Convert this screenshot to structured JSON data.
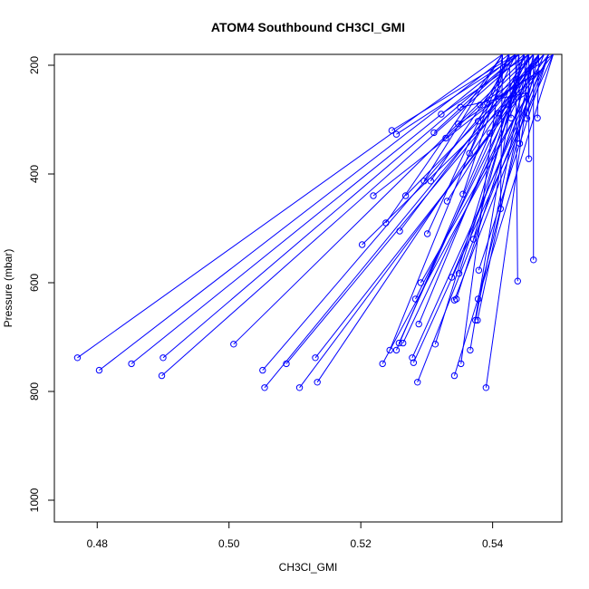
{
  "chart_data": {
    "type": "line",
    "title": "ATOM4 Southbound CH3Cl_GMI",
    "xlabel": "CH3Cl_GMI",
    "ylabel": "Pressure (mbar)",
    "xlim": [
      0.4735,
      0.5505
    ],
    "ylim": [
      1040,
      180
    ],
    "y_inverted": true,
    "x_ticks": [
      0.48,
      0.5,
      0.52,
      0.54
    ],
    "x_tick_labels": [
      "0.48",
      "0.50",
      "0.52",
      "0.54"
    ],
    "y_ticks": [
      200,
      400,
      600,
      800,
      1000
    ],
    "y_tick_labels": [
      "200",
      "400",
      "600",
      "800",
      "1000"
    ],
    "grid": false,
    "colors": {
      "series": "#0000ff",
      "axis": "#000000"
    },
    "top_point_pool": [
      [
        0.5415,
        180
      ],
      [
        0.5425,
        180
      ],
      [
        0.5435,
        180
      ],
      [
        0.544,
        180
      ],
      [
        0.5448,
        180
      ],
      [
        0.5455,
        180
      ],
      [
        0.5462,
        180
      ],
      [
        0.547,
        180
      ],
      [
        0.5478,
        180
      ],
      [
        0.5485,
        180
      ],
      [
        0.5492,
        180
      ],
      [
        0.546,
        195
      ],
      [
        0.5472,
        210
      ],
      [
        0.544,
        230
      ],
      [
        0.5455,
        250
      ]
    ],
    "series": [
      {
        "marker": "open-circle",
        "points": [
          [
            0.477,
            738
          ],
          [
            0.4803,
            761
          ],
          [
            0.4852,
            749
          ],
          [
            0.49,
            738
          ],
          [
            0.4898,
            771
          ],
          [
            0.5007,
            713
          ],
          [
            0.5051,
            761
          ],
          [
            0.5054,
            793
          ],
          [
            0.5087,
            749
          ],
          [
            0.5107,
            793
          ],
          [
            0.5131,
            738
          ],
          [
            0.5134,
            783
          ],
          [
            0.5202,
            530
          ],
          [
            0.5219,
            440
          ],
          [
            0.5233,
            749
          ],
          [
            0.5238,
            490
          ],
          [
            0.5244,
            724
          ],
          [
            0.5247,
            320
          ],
          [
            0.5254,
            327
          ],
          [
            0.5254,
            724
          ],
          [
            0.5258,
            711
          ],
          [
            0.5259,
            505
          ],
          [
            0.5264,
            711
          ],
          [
            0.5268,
            440
          ],
          [
            0.5278,
            738
          ],
          [
            0.528,
            747
          ],
          [
            0.5283,
            630
          ],
          [
            0.5286,
            783
          ],
          [
            0.5288,
            676
          ],
          [
            0.5291,
            600
          ],
          [
            0.5296,
            413
          ],
          [
            0.5301,
            510
          ],
          [
            0.5306,
            413
          ],
          [
            0.5311,
            324
          ],
          [
            0.5313,
            713
          ],
          [
            0.5322,
            290
          ],
          [
            0.5329,
            334
          ],
          [
            0.5331,
            450
          ],
          [
            0.5338,
            590
          ],
          [
            0.5342,
            632
          ],
          [
            0.5342,
            771
          ],
          [
            0.5345,
            630
          ],
          [
            0.5348,
            308
          ],
          [
            0.5349,
            583
          ],
          [
            0.5351,
            277
          ],
          [
            0.5352,
            749
          ],
          [
            0.5355,
            437
          ],
          [
            0.5365,
            362
          ],
          [
            0.5366,
            724
          ],
          [
            0.5371,
            520
          ],
          [
            0.5374,
            669
          ],
          [
            0.5377,
            669
          ],
          [
            0.5378,
            630
          ],
          [
            0.5378,
            303
          ],
          [
            0.5379,
            577
          ],
          [
            0.5381,
            273
          ],
          [
            0.539,
            793
          ],
          [
            0.5392,
            270
          ],
          [
            0.5396,
            325
          ],
          [
            0.5408,
            288
          ],
          [
            0.5412,
            464
          ],
          [
            0.5428,
            297
          ],
          [
            0.5438,
            597
          ],
          [
            0.5441,
            344
          ],
          [
            0.5452,
            298
          ],
          [
            0.5455,
            372
          ],
          [
            0.5462,
            558
          ],
          [
            0.5468,
            297
          ]
        ]
      }
    ]
  }
}
